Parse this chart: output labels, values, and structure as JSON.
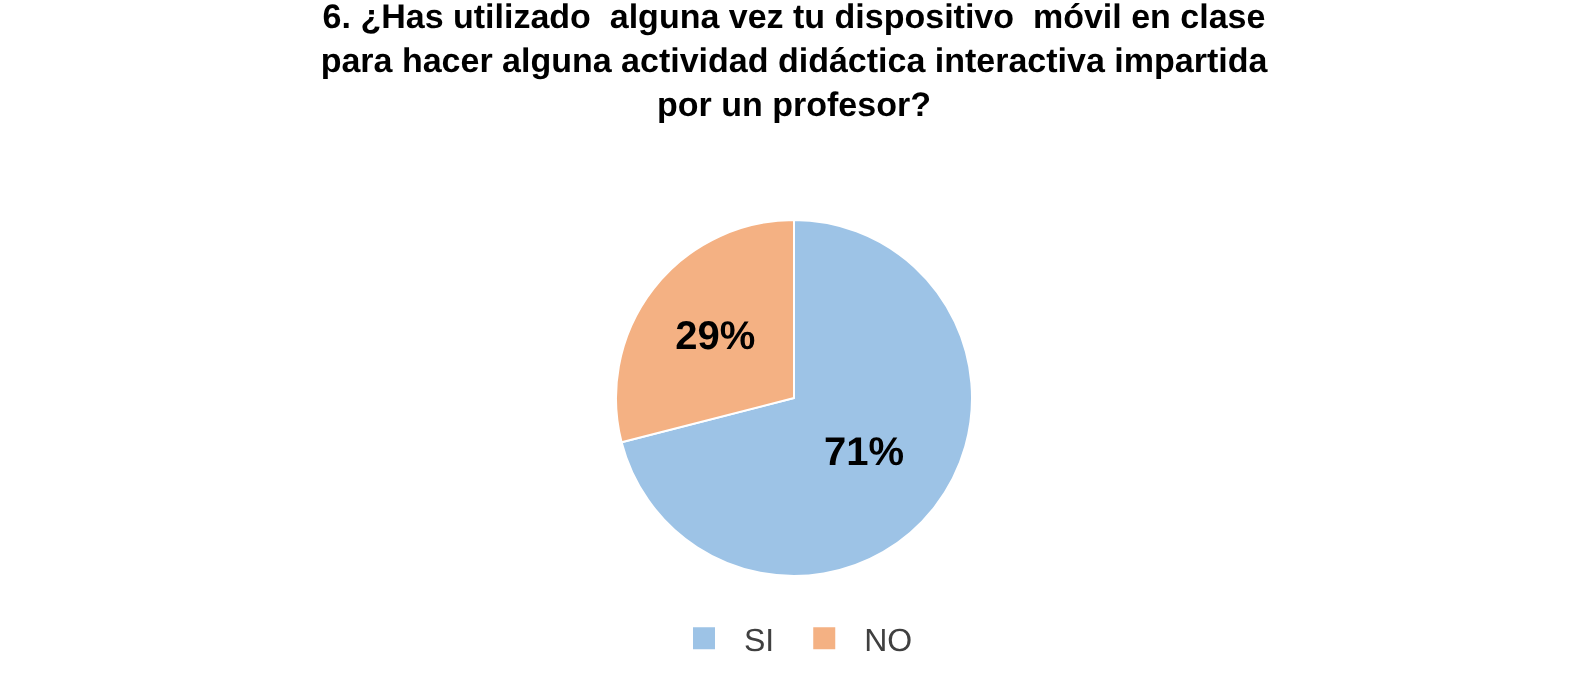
{
  "chart_data": {
    "type": "pie",
    "title": "6. ¿Has utilizado  alguna vez tu dispositivo  móvil en clase\npara hacer alguna actividad didáctica interactiva impartida\npor un profesor?",
    "categories": [
      "SI",
      "NO"
    ],
    "values": [
      71,
      29
    ],
    "colors": [
      "#9dc3e6",
      "#f4b183"
    ],
    "value_labels": [
      "71%",
      "29%"
    ],
    "legend": "bottom"
  }
}
